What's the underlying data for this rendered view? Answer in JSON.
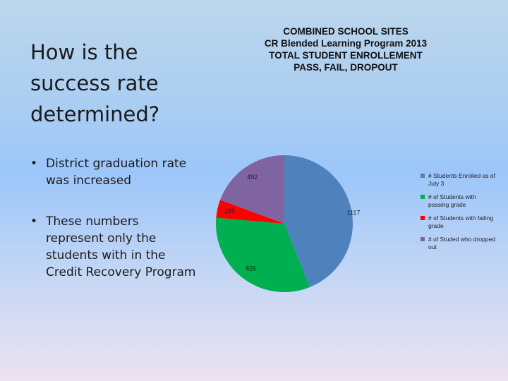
{
  "slide": {
    "title": "How is the success rate determined?",
    "bullets": [
      "District graduation rate was increased",
      "These numbers represent only the students with in the Credit Recovery Program"
    ]
  },
  "chart_data": {
    "type": "pie",
    "title_lines": [
      "COMBINED SCHOOL SITES",
      "CR Blended Learning Program 2013",
      "TOTAL STUDENT ENROLLEMENT",
      "PASS, FAIL, DROPOUT"
    ],
    "slices": [
      {
        "label": "# Students Enrolled as of July 3",
        "value": 1117,
        "color": "#4f81bd"
      },
      {
        "label": "# of Students with passing grade",
        "value": 826,
        "color": "#00b050"
      },
      {
        "label": "# of Students with failing grade",
        "value": 109,
        "color": "#ff0000"
      },
      {
        "label": "# of Studed who dropped out",
        "value": 492,
        "color": "#8064a2"
      }
    ],
    "legend_position": "right"
  }
}
